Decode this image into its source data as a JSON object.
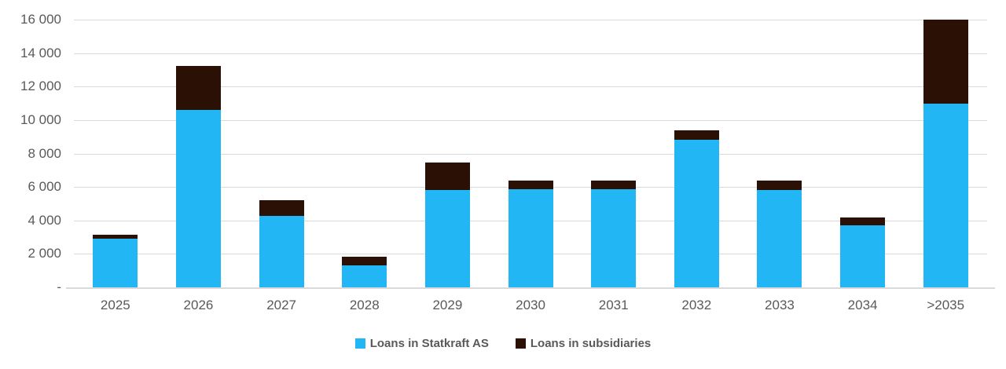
{
  "chart_data": {
    "type": "bar",
    "stacked": true,
    "title": "",
    "xlabel": "",
    "ylabel": "",
    "categories": [
      "2025",
      "2026",
      "2027",
      "2028",
      "2029",
      "2030",
      "2031",
      "2032",
      "2033",
      "2034",
      ">2035"
    ],
    "series": [
      {
        "name": "Loans in Statkraft AS",
        "color": "#22b6f5",
        "values": [
          2900,
          10600,
          4250,
          1300,
          5800,
          5850,
          5850,
          8800,
          5800,
          3700,
          11000
        ]
      },
      {
        "name": "Loans in subsidiaries",
        "color": "#2b1005",
        "values": [
          250,
          2650,
          950,
          550,
          1650,
          550,
          550,
          600,
          600,
          500,
          5000
        ]
      }
    ],
    "ylim": [
      0,
      16000
    ],
    "ytick_step": 2000,
    "ytick_labels": [
      "-",
      "2 000",
      "4 000",
      "6 000",
      "8 000",
      "10 000",
      "12 000",
      "14 000",
      "16 000"
    ],
    "grid": true,
    "legend_position": "bottom"
  },
  "legend": {
    "statkraft_label": "Loans in Statkraft AS",
    "subsidiaries_label": "Loans in subsidiaries"
  },
  "colors": {
    "statkraft_blue": "#22b6f5",
    "subsidiaries_brown": "#2b1005",
    "axis_text": "#595959",
    "gridline": "#d9d9d9",
    "background": "#ffffff"
  }
}
